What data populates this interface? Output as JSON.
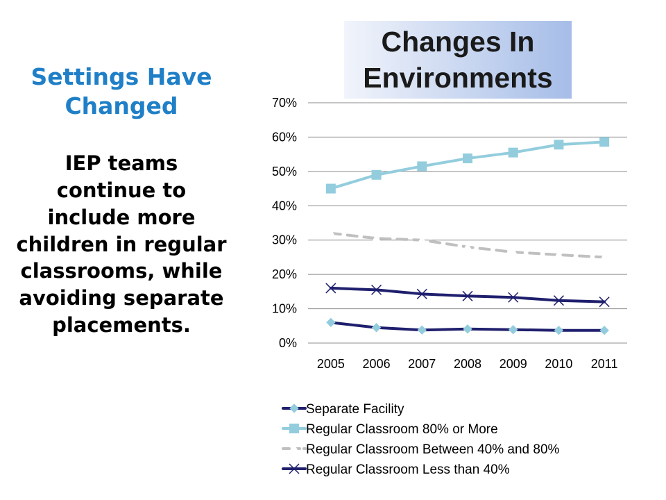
{
  "slide": {
    "heading": "Settings Have Changed",
    "body": "IEP teams continue to include more children in regular classrooms, while avoiding separate placements."
  },
  "chart_data": {
    "type": "line",
    "title": "Changes In Environments",
    "x": [
      "2005",
      "2006",
      "2007",
      "2008",
      "2009",
      "2010",
      "2011"
    ],
    "ylim": [
      0,
      70
    ],
    "yticks": [
      "0%",
      "10%",
      "20%",
      "30%",
      "40%",
      "50%",
      "60%",
      "70%"
    ],
    "grid": true,
    "legend_position": "bottom",
    "series": [
      {
        "name": "Separate Facility",
        "values": [
          6,
          4.5,
          3.8,
          4.1,
          3.9,
          3.7,
          3.7
        ],
        "color": "#1f1f6e",
        "marker": "diamond",
        "marker_color": "#93cddd",
        "dash": false
      },
      {
        "name": "Regular Classroom 80% or More",
        "values": [
          45,
          49,
          51.5,
          53.8,
          55.5,
          57.8,
          58.6
        ],
        "color": "#93cddd",
        "marker": "square",
        "marker_color": "#93cddd",
        "dash": false
      },
      {
        "name": "Regular Classroom Between 40% and 80%",
        "values": [
          32,
          30.5,
          30,
          28,
          26.5,
          25.7,
          25
        ],
        "color": "#c0c0c0",
        "marker": "triangle",
        "marker_color": "#ffffff",
        "dash": true
      },
      {
        "name": "Regular Classroom Less than 40%",
        "values": [
          16,
          15.5,
          14.3,
          13.7,
          13.3,
          12.4,
          12
        ],
        "color": "#1f1f6e",
        "marker": "x",
        "marker_color": "#1f1f6e",
        "dash": false
      }
    ]
  }
}
